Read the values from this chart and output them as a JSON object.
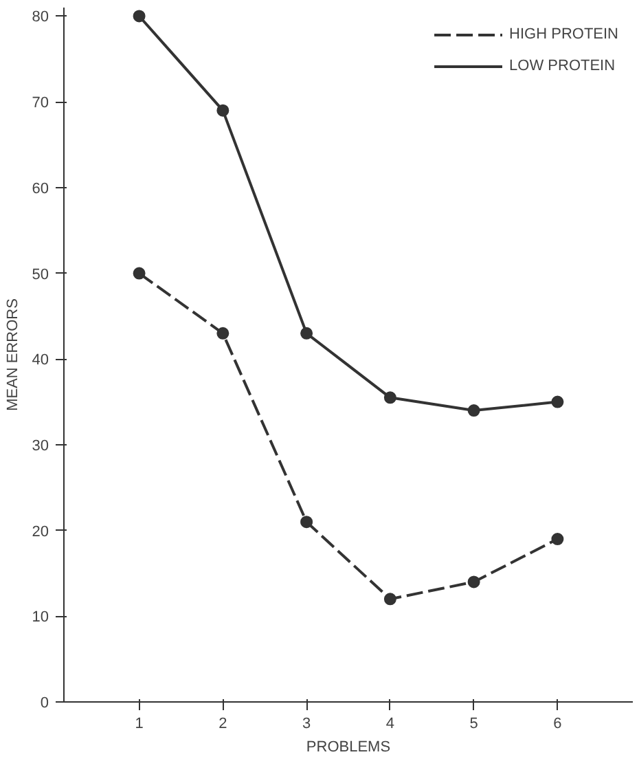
{
  "chart_data": {
    "type": "line",
    "xlabel": "PROBLEMS",
    "ylabel": "MEAN ERRORS",
    "x": [
      1,
      2,
      3,
      4,
      5,
      6
    ],
    "xlim": [
      0.1,
      6.9
    ],
    "xticks": [
      1,
      2,
      3,
      4,
      5,
      6
    ],
    "ylim": [
      0,
      81
    ],
    "yticks": [
      0,
      10,
      20,
      30,
      40,
      50,
      60,
      70,
      80
    ],
    "series": [
      {
        "name": "HIGH PROTEIN",
        "color": "#333333",
        "line_style": "dashed",
        "values": [
          50,
          43,
          21,
          12,
          14,
          19
        ]
      },
      {
        "name": "LOW PROTEIN",
        "color": "#333333",
        "line_style": "solid",
        "values": [
          80,
          69,
          43,
          35.5,
          34,
          35
        ]
      }
    ],
    "marker": "circle",
    "grid": false,
    "legend": "top right"
  }
}
